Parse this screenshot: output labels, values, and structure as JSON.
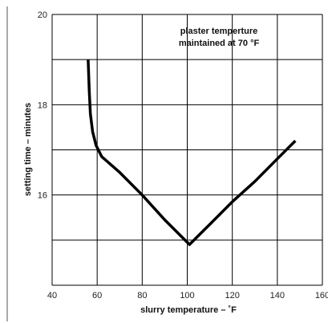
{
  "chart_data": {
    "type": "line",
    "xlabel": "slurry temperature – ˚F",
    "ylabel": "setting time – minutes",
    "xlim": [
      40,
      160
    ],
    "ylim": [
      14,
      20
    ],
    "x_ticks": [
      "40",
      "60",
      "80",
      "100",
      "120",
      "140",
      "160"
    ],
    "y_ticks": [
      "16",
      "18",
      "20"
    ],
    "grid": true,
    "annotation": [
      "plaster temperture",
      "maintained at 70 °F"
    ],
    "series": [
      {
        "x": [
          56,
          56.5,
          57,
          58,
          59.5,
          61,
          62,
          70,
          80,
          90,
          101,
          110,
          120,
          130,
          140,
          148
        ],
        "y": [
          19.0,
          18.3,
          17.8,
          17.4,
          17.1,
          16.95,
          16.85,
          16.5,
          16.0,
          15.45,
          14.9,
          15.35,
          15.85,
          16.3,
          16.8,
          17.2
        ]
      }
    ]
  },
  "colors": {
    "line": "#000000",
    "grid": "#000000",
    "sidebar_rule": "#555555"
  }
}
